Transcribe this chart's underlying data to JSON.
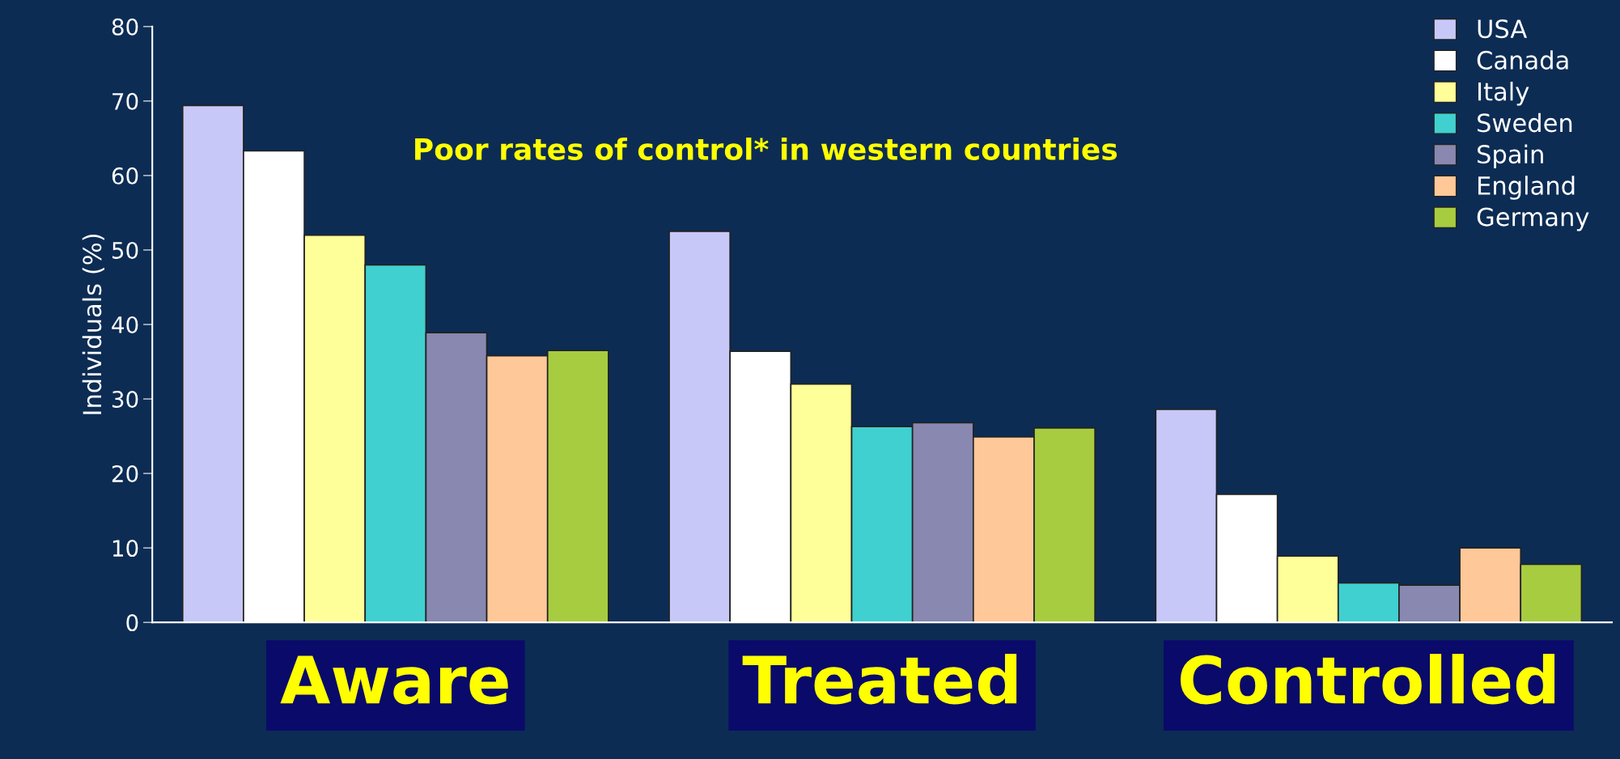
{
  "chart_data": {
    "type": "bar",
    "title": "Poor rates of control* in western countries",
    "ylabel": "Individuals (%)",
    "categories": [
      "Aware",
      "Treated",
      "Controlled"
    ],
    "series": [
      {
        "name": "USA",
        "color": "#c8c8f8",
        "values": [
          69.4,
          52.5,
          28.6
        ]
      },
      {
        "name": "Canada",
        "color": "#ffffff",
        "values": [
          63.3,
          36.4,
          17.2
        ]
      },
      {
        "name": "Italy",
        "color": "#ffff99",
        "values": [
          52,
          32,
          8.9
        ]
      },
      {
        "name": "Sweden",
        "color": "#40d0d0",
        "values": [
          48,
          26.3,
          5.3
        ]
      },
      {
        "name": "Spain",
        "color": "#8888b0",
        "values": [
          38.9,
          26.8,
          5
        ]
      },
      {
        "name": "England",
        "color": "#ffc898",
        "values": [
          35.8,
          24.9,
          10
        ]
      },
      {
        "name": "Germany",
        "color": "#a8cc40",
        "values": [
          36.5,
          26.1,
          7.8
        ]
      }
    ],
    "ylim": [
      0,
      80
    ],
    "yticks": [
      0,
      10,
      20,
      30,
      40,
      50,
      60,
      70,
      80
    ],
    "grid": false,
    "legend": "top right"
  }
}
